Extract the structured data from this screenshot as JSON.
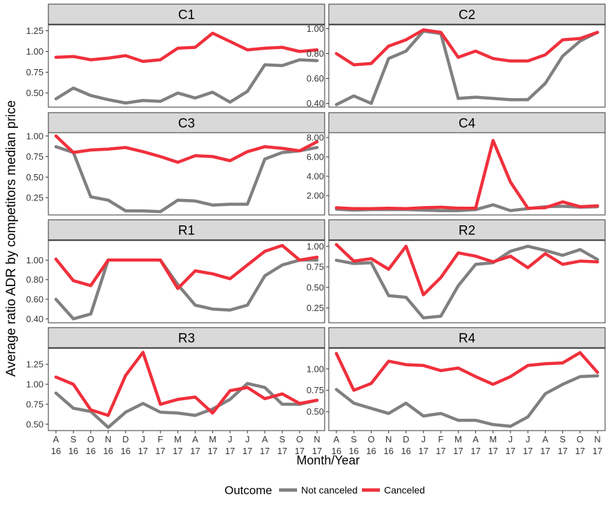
{
  "chart_data": {
    "type": "line",
    "ylabel": "Average ratio ADR by competitors median price",
    "xlabel": "Month/Year",
    "legend": {
      "title": "Outcome",
      "position": "bottom"
    },
    "x_ticks": [
      [
        "A",
        "16"
      ],
      [
        "S",
        "16"
      ],
      [
        "O",
        "16"
      ],
      [
        "N",
        "16"
      ],
      [
        "D",
        "16"
      ],
      [
        "J",
        "17"
      ],
      [
        "F",
        "17"
      ],
      [
        "M",
        "17"
      ],
      [
        "A",
        "17"
      ],
      [
        "M",
        "17"
      ],
      [
        "J",
        "17"
      ],
      [
        "J",
        "17"
      ],
      [
        "A",
        "17"
      ],
      [
        "S",
        "17"
      ],
      [
        "O",
        "17"
      ],
      [
        "N",
        "17"
      ]
    ],
    "series_info": [
      {
        "name": "Not canceled",
        "color": "#808080"
      },
      {
        "name": "Canceled",
        "color": "#F0303C"
      }
    ],
    "panels": [
      {
        "title": "C1",
        "ylim": [
          0.33,
          1.32
        ],
        "yticks": [
          "0.50",
          "0.75",
          "1.00",
          "1.25"
        ],
        "not_canceled": [
          0.43,
          0.56,
          0.47,
          0.42,
          0.38,
          0.41,
          0.4,
          0.5,
          0.44,
          0.51,
          0.39,
          0.52,
          0.84,
          0.83,
          0.9,
          0.89
        ],
        "canceled": [
          0.93,
          0.94,
          0.9,
          0.92,
          0.95,
          0.88,
          0.9,
          1.04,
          1.05,
          1.22,
          1.12,
          1.02,
          1.04,
          1.05,
          1.0,
          1.02
        ]
      },
      {
        "title": "C2",
        "ylim": [
          0.37,
          1.03
        ],
        "yticks": [
          "0.40",
          "0.60",
          "0.80",
          "1.00"
        ],
        "not_canceled": [
          0.39,
          0.46,
          0.4,
          0.76,
          0.82,
          0.98,
          0.96,
          0.44,
          0.45,
          0.44,
          0.43,
          0.43,
          0.56,
          0.78,
          0.9,
          0.97
        ],
        "canceled": [
          0.8,
          0.71,
          0.72,
          0.86,
          0.91,
          0.99,
          0.97,
          0.77,
          0.82,
          0.76,
          0.74,
          0.74,
          0.79,
          0.91,
          0.92,
          0.97
        ]
      },
      {
        "title": "C3",
        "ylim": [
          0.04,
          1.04
        ],
        "yticks": [
          "0.25",
          "0.50",
          "0.75",
          "1.00"
        ],
        "not_canceled": [
          0.87,
          0.8,
          0.26,
          0.22,
          0.09,
          0.09,
          0.08,
          0.22,
          0.21,
          0.16,
          0.17,
          0.17,
          0.72,
          0.8,
          0.82,
          0.86
        ],
        "canceled": [
          1.0,
          0.8,
          0.83,
          0.84,
          0.86,
          0.81,
          0.75,
          0.68,
          0.76,
          0.75,
          0.7,
          0.81,
          0.87,
          0.85,
          0.82,
          0.93
        ]
      },
      {
        "title": "C4",
        "ylim": [
          0.0,
          8.5
        ],
        "yticks": [
          "2.00",
          "4.00",
          "6.00",
          "8.00"
        ],
        "not_canceled": [
          0.6,
          0.5,
          0.55,
          0.55,
          0.55,
          0.5,
          0.45,
          0.45,
          0.55,
          1.05,
          0.45,
          0.65,
          0.85,
          0.9,
          0.8,
          0.85
        ],
        "canceled": [
          0.75,
          0.65,
          0.65,
          0.7,
          0.65,
          0.75,
          0.8,
          0.7,
          0.7,
          7.7,
          3.4,
          0.7,
          0.75,
          1.35,
          0.85,
          0.95
        ]
      },
      {
        "title": "R1",
        "ylim": [
          0.36,
          1.2
        ],
        "yticks": [
          "0.40",
          "0.60",
          "0.80",
          "1.00"
        ],
        "not_canceled": [
          0.6,
          0.4,
          0.45,
          1.0,
          1.0,
          1.0,
          1.0,
          0.75,
          0.54,
          0.5,
          0.49,
          0.54,
          0.84,
          0.95,
          1.0,
          1.0
        ],
        "canceled": [
          1.01,
          0.79,
          0.74,
          1.0,
          1.0,
          1.0,
          1.0,
          0.71,
          0.89,
          0.86,
          0.81,
          0.95,
          1.09,
          1.15,
          1.0,
          1.03
        ]
      },
      {
        "title": "R2",
        "ylim": [
          0.07,
          1.07
        ],
        "yticks": [
          "0.25",
          "0.50",
          "0.75",
          "1.00"
        ],
        "not_canceled": [
          0.83,
          0.79,
          0.8,
          0.4,
          0.38,
          0.13,
          0.15,
          0.52,
          0.78,
          0.8,
          0.94,
          1.0,
          0.95,
          0.89,
          0.96,
          0.84
        ],
        "canceled": [
          1.02,
          0.82,
          0.85,
          0.72,
          1.0,
          0.41,
          0.62,
          0.92,
          0.88,
          0.81,
          0.88,
          0.74,
          0.91,
          0.78,
          0.82,
          0.81
        ]
      },
      {
        "title": "R3",
        "ylim": [
          0.42,
          1.45
        ],
        "yticks": [
          "0.50",
          "0.75",
          "1.00",
          "1.25"
        ],
        "not_canceled": [
          0.89,
          0.7,
          0.66,
          0.46,
          0.65,
          0.76,
          0.65,
          0.64,
          0.61,
          0.69,
          0.81,
          1.01,
          0.96,
          0.75,
          0.75,
          0.8
        ],
        "canceled": [
          1.09,
          1.0,
          0.68,
          0.61,
          1.11,
          1.4,
          0.75,
          0.81,
          0.84,
          0.64,
          0.92,
          0.96,
          0.82,
          0.88,
          0.76,
          0.8
        ]
      },
      {
        "title": "R4",
        "ylim": [
          0.28,
          1.24
        ],
        "yticks": [
          "0.50",
          "0.75",
          "1.00"
        ],
        "not_canceled": [
          0.76,
          0.6,
          0.54,
          0.48,
          0.6,
          0.45,
          0.48,
          0.4,
          0.4,
          0.35,
          0.33,
          0.44,
          0.71,
          0.82,
          0.91,
          0.92
        ],
        "canceled": [
          1.18,
          0.75,
          0.83,
          1.09,
          1.05,
          1.04,
          0.98,
          1.01,
          0.91,
          0.82,
          0.91,
          1.04,
          1.06,
          1.07,
          1.19,
          0.96
        ]
      }
    ]
  }
}
